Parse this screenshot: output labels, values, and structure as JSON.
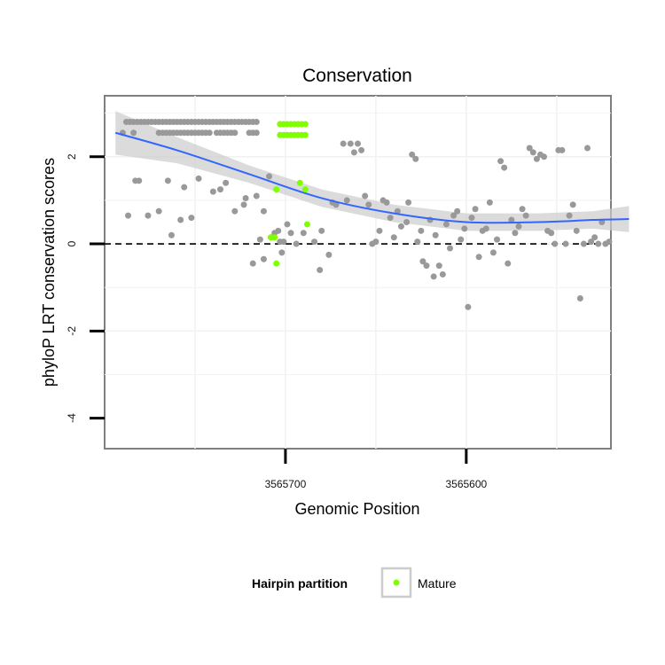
{
  "chart_data": {
    "type": "scatter",
    "title": "Conservation",
    "xlabel": "Genomic Position",
    "ylabel": "phyloP LRT conservation scores",
    "x_reversed": true,
    "xlim": [
      3565800,
      3565520
    ],
    "ylim": [
      -4.7,
      3.4
    ],
    "x_ticks": [
      {
        "value": 3565700,
        "label": "3565700"
      },
      {
        "value": 3565600,
        "label": "3565600"
      }
    ],
    "y_ticks": [
      {
        "value": -4,
        "label": "-4"
      },
      {
        "value": -2,
        "label": "-2"
      },
      {
        "value": 0,
        "label": "0"
      },
      {
        "value": 2,
        "label": "2"
      }
    ],
    "reference_line": {
      "y": 0,
      "style": "dashed"
    },
    "grid": true,
    "colors": {
      "background_points": "#999999",
      "mature_points": "#7fff00",
      "smooth_line": "#3366ff",
      "smooth_band": "#cccccc"
    },
    "series": [
      {
        "role": "background",
        "color": "#999999",
        "points": [
          [
            3565790,
            2.55
          ],
          [
            3565788,
            2.8
          ],
          [
            3565786,
            2.8
          ],
          [
            3565784,
            2.8
          ],
          [
            3565782,
            2.8
          ],
          [
            3565780,
            2.8
          ],
          [
            3565778,
            2.8
          ],
          [
            3565776,
            2.8
          ],
          [
            3565774,
            2.8
          ],
          [
            3565772,
            2.8
          ],
          [
            3565770,
            2.8
          ],
          [
            3565768,
            2.8
          ],
          [
            3565766,
            2.8
          ],
          [
            3565764,
            2.8
          ],
          [
            3565762,
            2.8
          ],
          [
            3565760,
            2.8
          ],
          [
            3565758,
            2.8
          ],
          [
            3565756,
            2.8
          ],
          [
            3565754,
            2.8
          ],
          [
            3565752,
            2.8
          ],
          [
            3565750,
            2.8
          ],
          [
            3565748,
            2.8
          ],
          [
            3565746,
            2.8
          ],
          [
            3565744,
            2.8
          ],
          [
            3565742,
            2.8
          ],
          [
            3565740,
            2.8
          ],
          [
            3565738,
            2.8
          ],
          [
            3565736,
            2.8
          ],
          [
            3565734,
            2.8
          ],
          [
            3565732,
            2.8
          ],
          [
            3565730,
            2.8
          ],
          [
            3565728,
            2.8
          ],
          [
            3565726,
            2.8
          ],
          [
            3565724,
            2.8
          ],
          [
            3565722,
            2.8
          ],
          [
            3565720,
            2.8
          ],
          [
            3565718,
            2.8
          ],
          [
            3565716,
            2.8
          ],
          [
            3565784,
            2.55
          ],
          [
            3565770,
            2.55
          ],
          [
            3565768,
            2.55
          ],
          [
            3565766,
            2.55
          ],
          [
            3565764,
            2.55
          ],
          [
            3565762,
            2.55
          ],
          [
            3565760,
            2.55
          ],
          [
            3565758,
            2.55
          ],
          [
            3565756,
            2.55
          ],
          [
            3565754,
            2.55
          ],
          [
            3565752,
            2.55
          ],
          [
            3565750,
            2.55
          ],
          [
            3565748,
            2.55
          ],
          [
            3565746,
            2.55
          ],
          [
            3565744,
            2.55
          ],
          [
            3565742,
            2.55
          ],
          [
            3565738,
            2.55
          ],
          [
            3565736,
            2.55
          ],
          [
            3565734,
            2.55
          ],
          [
            3565732,
            2.55
          ],
          [
            3565730,
            2.55
          ],
          [
            3565728,
            2.55
          ],
          [
            3565720,
            2.55
          ],
          [
            3565718,
            2.55
          ],
          [
            3565716,
            2.55
          ],
          [
            3565787,
            0.65
          ],
          [
            3565783,
            1.45
          ],
          [
            3565781,
            1.45
          ],
          [
            3565776,
            0.65
          ],
          [
            3565770,
            0.75
          ],
          [
            3565765,
            1.45
          ],
          [
            3565763,
            0.2
          ],
          [
            3565758,
            0.55
          ],
          [
            3565756,
            1.3
          ],
          [
            3565752,
            0.6
          ],
          [
            3565748,
            1.5
          ],
          [
            3565740,
            1.2
          ],
          [
            3565736,
            1.25
          ],
          [
            3565733,
            1.4
          ],
          [
            3565728,
            0.75
          ],
          [
            3565723,
            0.9
          ],
          [
            3565722,
            1.05
          ],
          [
            3565718,
            -0.45
          ],
          [
            3565716,
            1.1
          ],
          [
            3565714,
            0.1
          ],
          [
            3565712,
            -0.35
          ],
          [
            3565712,
            0.75
          ],
          [
            3565709,
            1.55
          ],
          [
            3565708,
            0.15
          ],
          [
            3565706,
            0.25
          ],
          [
            3565704,
            0.3
          ],
          [
            3565703,
            0.05
          ],
          [
            3565702,
            -0.2
          ],
          [
            3565701,
            0.05
          ],
          [
            3565699,
            0.45
          ],
          [
            3565697,
            0.25
          ],
          [
            3565694,
            0.0
          ],
          [
            3565690,
            0.25
          ],
          [
            3565684,
            0.05
          ],
          [
            3565681,
            -0.6
          ],
          [
            3565680,
            0.3
          ],
          [
            3565676,
            -0.25
          ],
          [
            3565674,
            0.95
          ],
          [
            3565672,
            0.9
          ],
          [
            3565668,
            2.3
          ],
          [
            3565666,
            1.0
          ],
          [
            3565664,
            2.3
          ],
          [
            3565662,
            2.1
          ],
          [
            3565660,
            2.3
          ],
          [
            3565658,
            2.15
          ],
          [
            3565656,
            1.1
          ],
          [
            3565654,
            0.9
          ],
          [
            3565652,
            0.0
          ],
          [
            3565650,
            0.05
          ],
          [
            3565648,
            0.3
          ],
          [
            3565646,
            1.0
          ],
          [
            3565644,
            0.95
          ],
          [
            3565642,
            0.6
          ],
          [
            3565640,
            0.15
          ],
          [
            3565638,
            0.75
          ],
          [
            3565636,
            0.4
          ],
          [
            3565633,
            0.5
          ],
          [
            3565632,
            0.95
          ],
          [
            3565630,
            2.05
          ],
          [
            3565628,
            1.95
          ],
          [
            3565627,
            0.05
          ],
          [
            3565625,
            0.3
          ],
          [
            3565624,
            -0.4
          ],
          [
            3565622,
            -0.5
          ],
          [
            3565620,
            0.55
          ],
          [
            3565618,
            -0.75
          ],
          [
            3565617,
            0.2
          ],
          [
            3565615,
            -0.5
          ],
          [
            3565613,
            -0.7
          ],
          [
            3565611,
            0.45
          ],
          [
            3565609,
            -0.1
          ],
          [
            3565607,
            0.65
          ],
          [
            3565605,
            0.75
          ],
          [
            3565603,
            0.1
          ],
          [
            3565601,
            0.35
          ],
          [
            3565599,
            -1.45
          ],
          [
            3565597,
            0.6
          ],
          [
            3565595,
            0.8
          ],
          [
            3565593,
            -0.3
          ],
          [
            3565591,
            0.3
          ],
          [
            3565589,
            0.35
          ],
          [
            3565587,
            0.95
          ],
          [
            3565585,
            -0.2
          ],
          [
            3565583,
            0.1
          ],
          [
            3565581,
            1.9
          ],
          [
            3565579,
            1.75
          ],
          [
            3565577,
            -0.45
          ],
          [
            3565575,
            0.55
          ],
          [
            3565573,
            0.25
          ],
          [
            3565571,
            0.4
          ],
          [
            3565569,
            0.8
          ],
          [
            3565567,
            0.65
          ],
          [
            3565565,
            2.2
          ],
          [
            3565563,
            2.1
          ],
          [
            3565561,
            1.95
          ],
          [
            3565559,
            2.05
          ],
          [
            3565557,
            2.0
          ],
          [
            3565555,
            0.3
          ],
          [
            3565553,
            0.25
          ],
          [
            3565551,
            0.0
          ],
          [
            3565549,
            2.15
          ],
          [
            3565547,
            2.15
          ],
          [
            3565545,
            0.0
          ],
          [
            3565543,
            0.65
          ],
          [
            3565541,
            0.9
          ],
          [
            3565539,
            0.3
          ],
          [
            3565537,
            -1.25
          ],
          [
            3565535,
            0.0
          ],
          [
            3565533,
            2.2
          ],
          [
            3565531,
            0.05
          ],
          [
            3565529,
            0.15
          ],
          [
            3565527,
            0.0
          ],
          [
            3565525,
            0.5
          ],
          [
            3565523,
            0.0
          ],
          [
            3565521,
            0.05
          ]
        ]
      },
      {
        "name": "Mature",
        "color": "#7fff00",
        "points": [
          [
            3565703,
            2.75
          ],
          [
            3565701,
            2.75
          ],
          [
            3565699,
            2.75
          ],
          [
            3565697,
            2.75
          ],
          [
            3565695,
            2.75
          ],
          [
            3565693,
            2.75
          ],
          [
            3565691,
            2.75
          ],
          [
            3565689,
            2.75
          ],
          [
            3565703,
            2.5
          ],
          [
            3565701,
            2.5
          ],
          [
            3565699,
            2.5
          ],
          [
            3565697,
            2.5
          ],
          [
            3565695,
            2.5
          ],
          [
            3565693,
            2.5
          ],
          [
            3565691,
            2.5
          ],
          [
            3565689,
            2.5
          ],
          [
            3565692,
            1.4
          ],
          [
            3565689,
            1.25
          ],
          [
            3565705,
            1.25
          ],
          [
            3565688,
            0.45
          ],
          [
            3565708,
            0.15
          ],
          [
            3565706,
            0.15
          ],
          [
            3565705,
            -0.45
          ]
        ]
      }
    ],
    "smooth": {
      "x": [
        3565794,
        3565760,
        3565720,
        3565680,
        3565640,
        3565600,
        3565560,
        3565530,
        3565510
      ],
      "y": [
        2.55,
        2.15,
        1.6,
        1.05,
        0.7,
        0.5,
        0.5,
        0.55,
        0.57
      ],
      "band_halfwidth": [
        0.5,
        0.3,
        0.2,
        0.2,
        0.2,
        0.2,
        0.2,
        0.2,
        0.3
      ]
    },
    "legend": {
      "title": "Hairpin partition",
      "placement": "bottom",
      "entries": [
        {
          "label": "Mature",
          "color": "#7fff00"
        }
      ]
    }
  }
}
